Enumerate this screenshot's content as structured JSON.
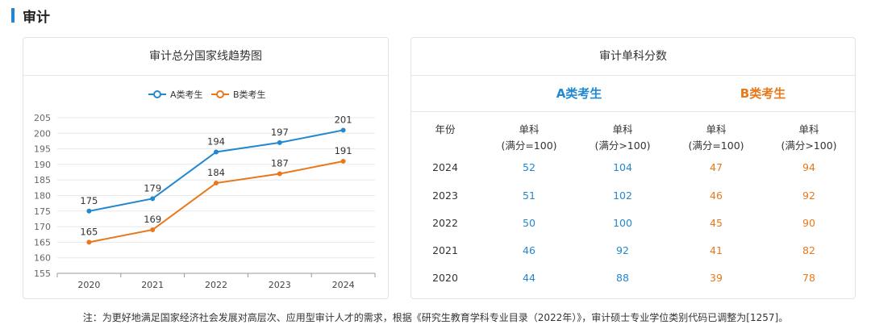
{
  "section": {
    "title": "审计"
  },
  "chart_data": {
    "type": "line",
    "title": "审计总分国家线趋势图",
    "x": [
      "2020",
      "2021",
      "2022",
      "2023",
      "2024"
    ],
    "series": [
      {
        "name": "A类考生",
        "color": "#2288d0",
        "values": [
          175,
          179,
          194,
          197,
          201
        ]
      },
      {
        "name": "B类考生",
        "color": "#e8781a",
        "values": [
          165,
          169,
          184,
          187,
          191
        ]
      }
    ],
    "ylim": [
      155,
      205
    ],
    "yticks": [
      155,
      160,
      165,
      170,
      175,
      180,
      185,
      190,
      195,
      200,
      205
    ],
    "grid": true,
    "legend": "top-center"
  },
  "table": {
    "title": "审计单科分数",
    "group_a": "A类考生",
    "group_b": "B类考生",
    "year_header": "年份",
    "headers": [
      [
        "单科",
        "(满分=100)"
      ],
      [
        "单科",
        "(满分>100)"
      ],
      [
        "单科",
        "(满分=100)"
      ],
      [
        "单科",
        "(满分>100)"
      ]
    ],
    "rows": [
      {
        "year": "2024",
        "a100": "52",
        "aover": "104",
        "b100": "47",
        "bover": "94"
      },
      {
        "year": "2023",
        "a100": "51",
        "aover": "102",
        "b100": "46",
        "bover": "92"
      },
      {
        "year": "2022",
        "a100": "50",
        "aover": "100",
        "b100": "45",
        "bover": "90"
      },
      {
        "year": "2021",
        "a100": "46",
        "aover": "92",
        "b100": "41",
        "bover": "82"
      },
      {
        "year": "2020",
        "a100": "44",
        "aover": "88",
        "b100": "39",
        "bover": "78"
      }
    ]
  },
  "footnote": "注：为更好地满足国家经济社会发展对高层次、应用型审计人才的需求，根据《研究生教育学科专业目录（2022年）》，审计硕士专业学位类别代码已调整为[1257]。"
}
